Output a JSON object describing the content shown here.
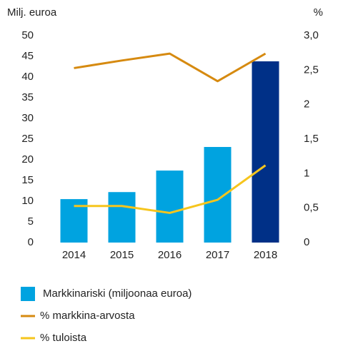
{
  "chart_data": {
    "type": "bar",
    "y_label": "Milj. euroa",
    "y2_label": "%",
    "categories": [
      "2014",
      "2015",
      "2016",
      "2017",
      "2018"
    ],
    "series": [
      {
        "name": "Markkinariski (miljoonaa euroa)",
        "type": "bar",
        "color": "#00a3e0",
        "highlight_color": "#003087",
        "values": [
          10.5,
          12.2,
          17.4,
          23.1,
          43.8
        ]
      },
      {
        "name": "% markkina-arvosta",
        "type": "line",
        "axis": "y2",
        "color": "#d68a10",
        "values": [
          2.53,
          2.64,
          2.74,
          2.34,
          2.74
        ]
      },
      {
        "name": "% tuloista",
        "type": "line",
        "axis": "y2",
        "color": "#f6c51d",
        "values": [
          0.53,
          0.53,
          0.43,
          0.62,
          1.12
        ]
      }
    ],
    "ylim": [
      0,
      50
    ],
    "yticks": [
      0,
      5,
      10,
      15,
      20,
      25,
      30,
      35,
      40,
      45,
      50
    ],
    "y2lim": [
      0,
      3
    ],
    "y2ticks": [
      0,
      {
        "value": 0.5,
        "label": "0,5"
      },
      1,
      {
        "value": 1.5,
        "label": "1,5"
      },
      2,
      {
        "value": 2.5,
        "label": "2,5"
      },
      {
        "value": 3,
        "label": "3,0"
      }
    ],
    "legend": "bottom"
  }
}
